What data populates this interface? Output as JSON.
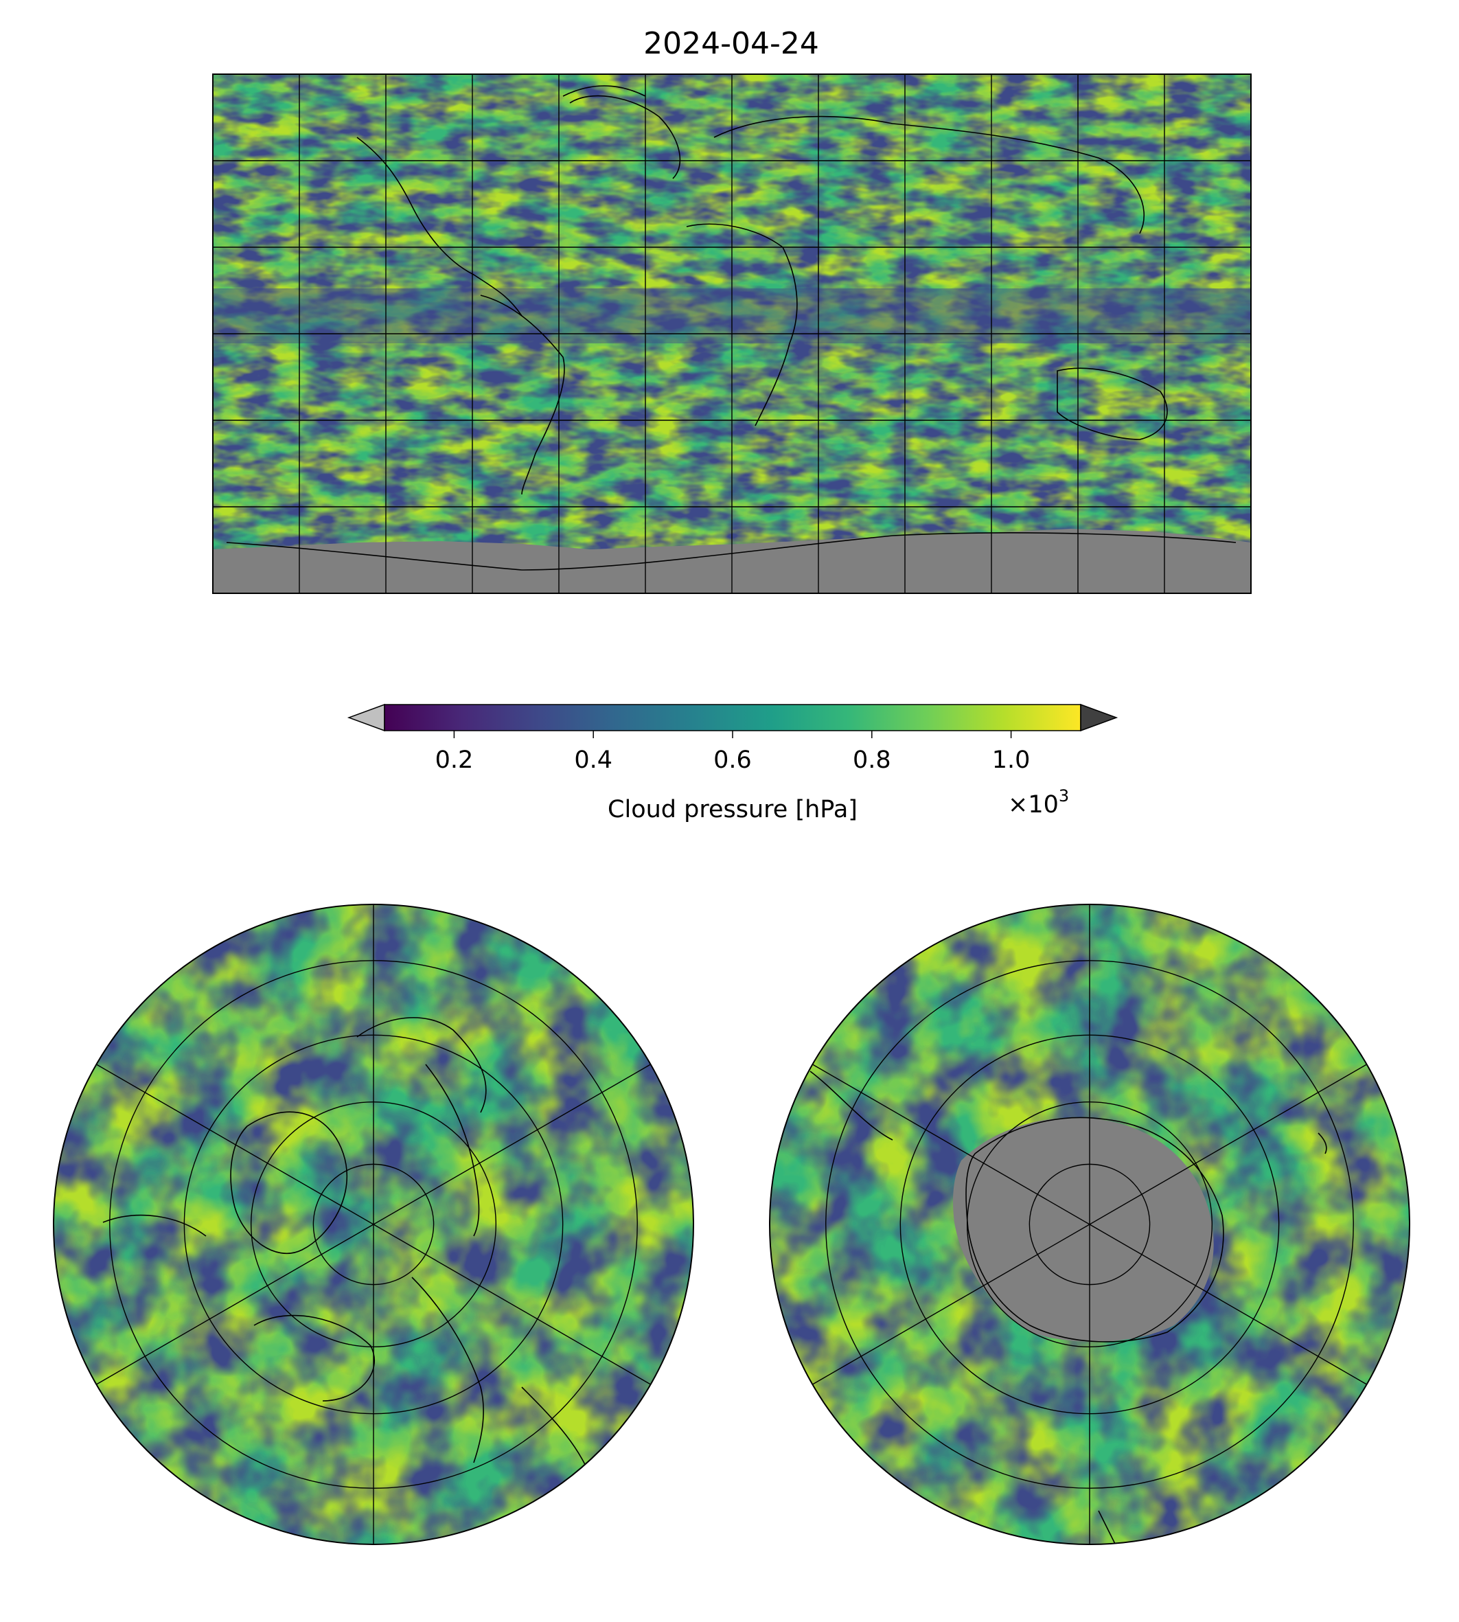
{
  "figure": {
    "title": "2024-04-24"
  },
  "colorbar": {
    "label": "Cloud pressure [hPa]",
    "multiplier": "×10",
    "multiplier_exponent": "3",
    "ticks": [
      0.2,
      0.4,
      0.6,
      0.8,
      1.0
    ],
    "tick_labels": [
      "0.2",
      "0.4",
      "0.6",
      "0.8",
      "1.0"
    ],
    "range": [
      0.1,
      1.1
    ],
    "colormap": "viridis",
    "extend": "both",
    "under_color": "#c0c0c0",
    "over_color": "#404040",
    "stops": [
      "#440154",
      "#482878",
      "#3e4989",
      "#31688e",
      "#26828e",
      "#1f9e89",
      "#35b779",
      "#6ece58",
      "#b5de2b",
      "#fde725"
    ]
  },
  "chart_data": [
    {
      "type": "heatmap",
      "name": "global",
      "projection": "PlateCarree",
      "variable": "Cloud pressure [hPa]",
      "value_range": [
        100,
        1100
      ],
      "lon_gridlines": [
        -180,
        -150,
        -120,
        -90,
        -60,
        -30,
        0,
        30,
        60,
        90,
        120,
        150,
        180
      ],
      "lat_gridlines": [
        -90,
        -60,
        -30,
        0,
        30,
        60,
        90
      ],
      "no_data_color": "#808080"
    },
    {
      "type": "heatmap",
      "name": "north-polar",
      "projection": "NorthPolarStereo",
      "variable": "Cloud pressure [hPa]",
      "value_range": [
        100,
        1100
      ],
      "meridians": [
        0,
        60,
        120,
        180,
        240,
        300
      ],
      "parallels": [
        30,
        45,
        60,
        75
      ]
    },
    {
      "type": "heatmap",
      "name": "south-polar",
      "projection": "SouthPolarStereo",
      "variable": "Cloud pressure [hPa]",
      "value_range": [
        100,
        1100
      ],
      "meridians": [
        0,
        60,
        120,
        180,
        240,
        300
      ],
      "parallels": [
        -30,
        -45,
        -60,
        -75
      ],
      "no_data_color": "#808080"
    }
  ]
}
